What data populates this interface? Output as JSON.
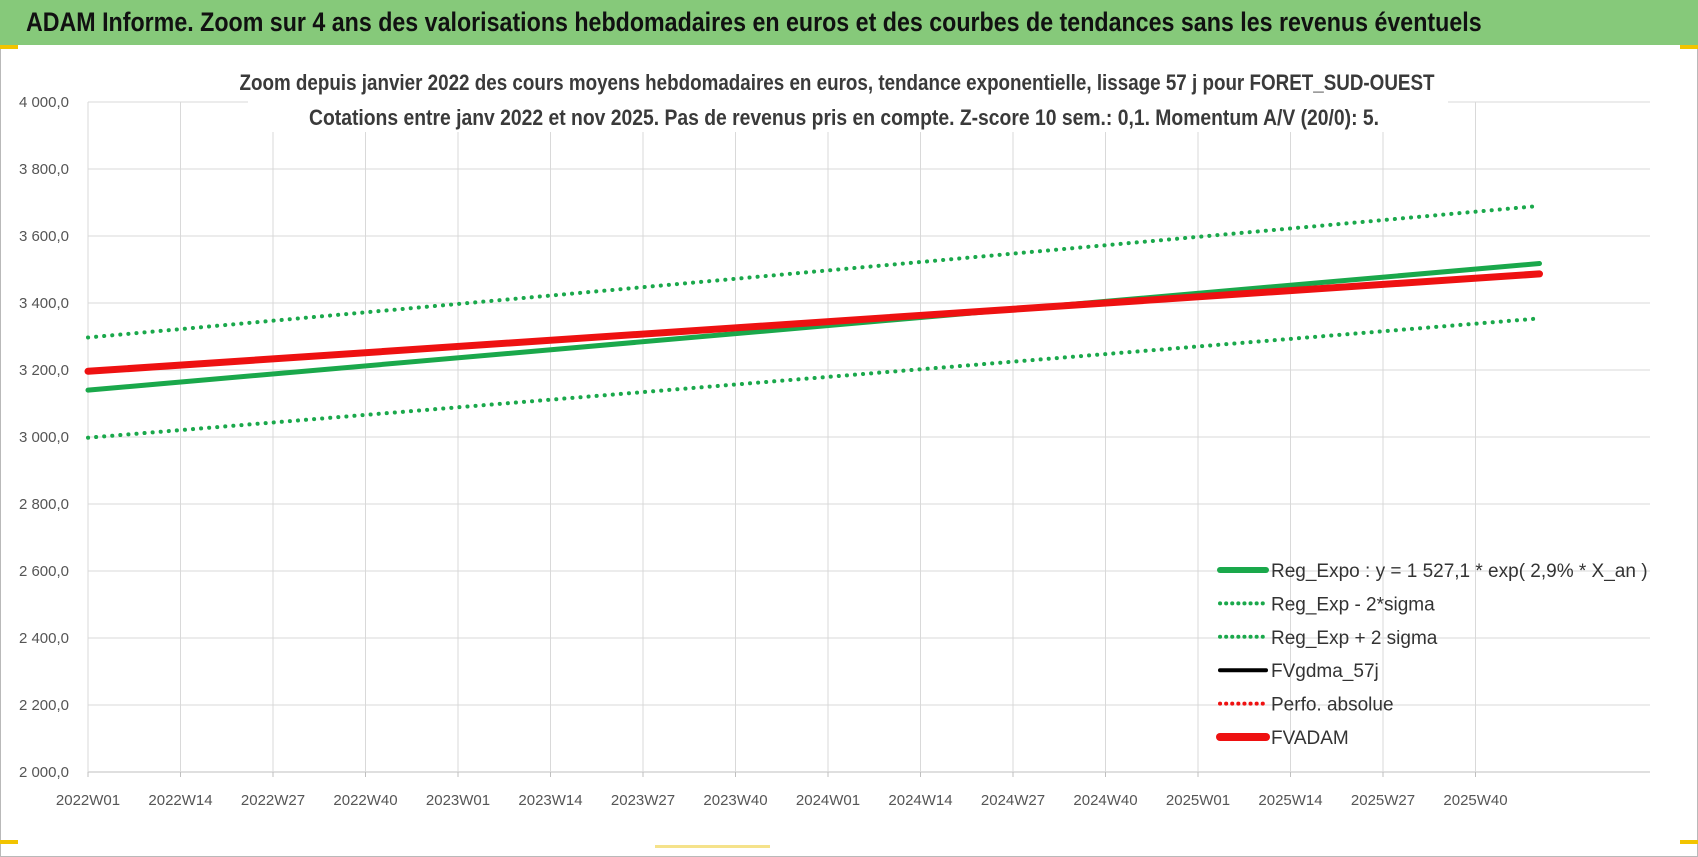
{
  "header": {
    "title": "ADAM Informe. Zoom sur 4 ans des valorisations hebdomadaires en euros et des courbes de tendances sans les revenus éventuels"
  },
  "colors": {
    "header_bg": "#86c97a",
    "green": "#1aa84b",
    "red": "#ee1111",
    "black": "#000000",
    "grid": "#d9d9d9",
    "accent": "#f2c400"
  },
  "chart_data": {
    "type": "line",
    "title": "Zoom depuis janvier 2022 des cours moyens hebdomadaires en euros, tendance exponentielle, lissage 57 j pour FORET_SUD-OUEST",
    "subtitle": "Cotations entre janv 2022 et nov 2025. Pas de revenus pris en compte. Z-score 10 sem.: 0,1. Momentum A/V (20/0): 5.",
    "xlabel": "",
    "ylabel": "",
    "ylim": [
      2000,
      4000
    ],
    "ytick_step": 200,
    "y_tick_labels": [
      "2 000,0",
      "2 200,0",
      "2 400,0",
      "2 600,0",
      "2 800,0",
      "3 000,0",
      "3 200,0",
      "3 400,0",
      "3 600,0",
      "3 800,0",
      "4 000,0"
    ],
    "x_tick_labels": [
      "2022W01",
      "2022W14",
      "2022W27",
      "2022W40",
      "2023W01",
      "2023W14",
      "2023W27",
      "2023W40",
      "2024W01",
      "2024W14",
      "2024W27",
      "2024W40",
      "2025W01",
      "2025W14",
      "2025W27",
      "2025W40"
    ],
    "x_weeks_per_tick": 13,
    "x_range_weeks": [
      0,
      204
    ],
    "grid": true,
    "legend_position": "bottom-right",
    "series": [
      {
        "name": "Reg_Expo : y = 1 527,1 * exp( 2,9% *  X_an )",
        "style": "solid",
        "color": "#1aa84b",
        "width": 5,
        "x": [
          0,
          204
        ],
        "y": [
          3140,
          3518
        ]
      },
      {
        "name": "Reg_Exp - 2*sigma",
        "style": "dotted",
        "color": "#1aa84b",
        "width": 4,
        "x": [
          0,
          204
        ],
        "y": [
          2998,
          3354
        ]
      },
      {
        "name": "Reg_Exp + 2 sigma",
        "style": "dotted",
        "color": "#1aa84b",
        "width": 4,
        "x": [
          0,
          204
        ],
        "y": [
          3297,
          3690
        ]
      },
      {
        "name": "FVgdma_57j",
        "style": "solid",
        "color": "#000000",
        "width": 3,
        "x": [],
        "y": []
      },
      {
        "name": "Perfo. absolue",
        "style": "dotted",
        "color": "#ee1111",
        "width": 3,
        "x": [],
        "y": []
      },
      {
        "name": "FVADAM",
        "style": "solid",
        "color": "#ee1111",
        "width": 7,
        "x": [
          0,
          204
        ],
        "y": [
          3196,
          3487
        ]
      }
    ]
  }
}
